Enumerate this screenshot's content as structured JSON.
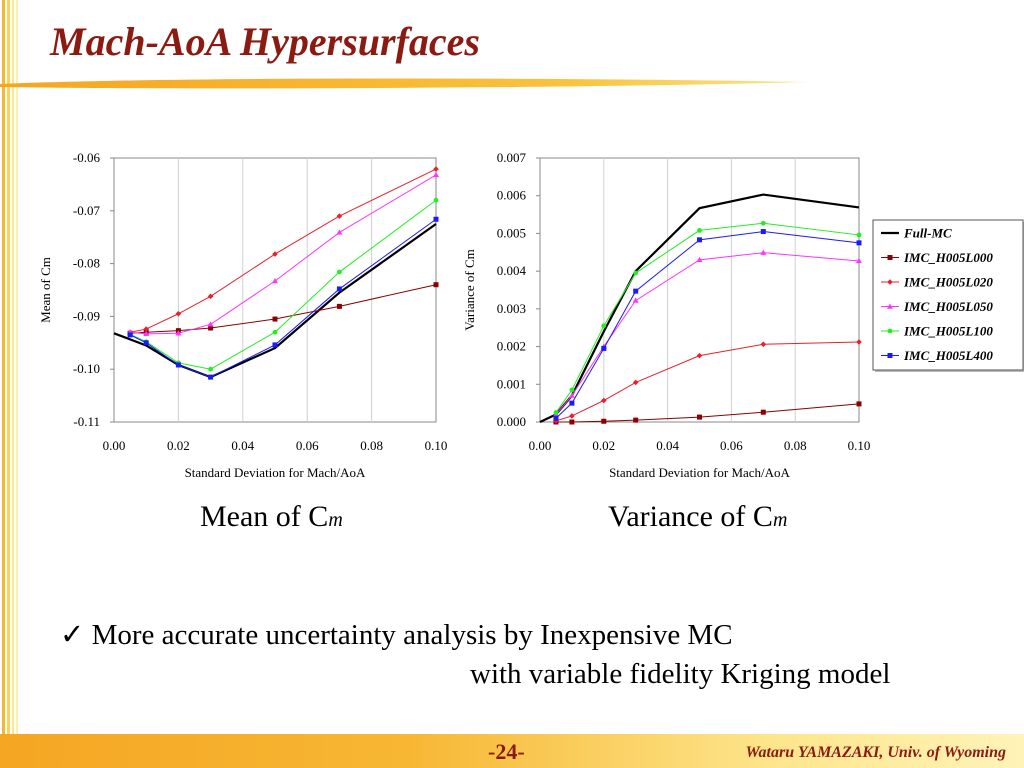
{
  "slide": {
    "title": "Mach-AoA Hypersurfaces",
    "caption_left": "Mean of C",
    "caption_left_sub": "m",
    "caption_right": "Variance of C",
    "caption_right_sub": "m",
    "bullet_mark": "✓",
    "bullet_line1": "More accurate uncertainty analysis by Inexpensive MC",
    "bullet_line2": "with variable fidelity Kriging model",
    "page_number": "-24-",
    "author": "Wataru YAMAZAKI, Univ. of Wyoming"
  },
  "colors": {
    "title": "#8b1a12",
    "Full-MC": "#000000",
    "IMC_H005L000": "#8b0000",
    "IMC_H005L020": "#e8202a",
    "IMC_H005L050": "#ff33ff",
    "IMC_H005L100": "#22ee22",
    "IMC_H005L400": "#1a1aff"
  },
  "chart_data": [
    {
      "type": "line",
      "xlabel": "Standard Deviation for Mach/AoA",
      "ylabel": "Mean of Cm",
      "xlim": [
        0,
        0.1
      ],
      "ylim": [
        -0.11,
        -0.06
      ],
      "xticks": [
        "0.00",
        "0.02",
        "0.04",
        "0.06",
        "0.08",
        "0.10"
      ],
      "yticks": [
        "-0.06",
        "-0.07",
        "-0.08",
        "-0.09",
        "-0.10",
        "-0.11"
      ],
      "grid": "vertical",
      "series": [
        {
          "name": "Full-MC",
          "x": [
            0,
            0.01,
            0.02,
            0.03,
            0.05,
            0.07,
            0.1
          ],
          "y": [
            -0.0932,
            -0.0955,
            -0.0992,
            -0.1015,
            -0.096,
            -0.0855,
            -0.0725
          ]
        },
        {
          "name": "IMC_H005L000",
          "x": [
            0.005,
            0.01,
            0.02,
            0.03,
            0.05,
            0.07,
            0.1
          ],
          "y": [
            -0.0932,
            -0.093,
            -0.0927,
            -0.0922,
            -0.0905,
            -0.0881,
            -0.084
          ]
        },
        {
          "name": "IMC_H005L020",
          "x": [
            0.005,
            0.01,
            0.02,
            0.03,
            0.05,
            0.07,
            0.1
          ],
          "y": [
            -0.093,
            -0.0924,
            -0.0895,
            -0.0862,
            -0.0782,
            -0.071,
            -0.0621
          ]
        },
        {
          "name": "IMC_H005L050",
          "x": [
            0.005,
            0.01,
            0.02,
            0.03,
            0.05,
            0.07,
            0.1
          ],
          "y": [
            -0.093,
            -0.0933,
            -0.0932,
            -0.0915,
            -0.0833,
            -0.0741,
            -0.0632
          ]
        },
        {
          "name": "IMC_H005L100",
          "x": [
            0.005,
            0.01,
            0.02,
            0.03,
            0.05,
            0.07,
            0.1
          ],
          "y": [
            -0.0934,
            -0.0948,
            -0.0988,
            -0.1,
            -0.093,
            -0.0816,
            -0.068
          ]
        },
        {
          "name": "IMC_H005L400",
          "x": [
            0.005,
            0.01,
            0.02,
            0.03,
            0.05,
            0.07,
            0.1
          ],
          "y": [
            -0.0935,
            -0.095,
            -0.0992,
            -0.1015,
            -0.0954,
            -0.0848,
            -0.0716
          ]
        }
      ]
    },
    {
      "type": "line",
      "xlabel": "Standard Deviation for Mach/AoA",
      "ylabel": "Variance of Cm",
      "xlim": [
        0,
        0.1
      ],
      "ylim": [
        0,
        0.007
      ],
      "xticks": [
        "0.00",
        "0.02",
        "0.04",
        "0.06",
        "0.08",
        "0.10"
      ],
      "yticks": [
        "0.007",
        "0.006",
        "0.005",
        "0.004",
        "0.003",
        "0.002",
        "0.001",
        "0.000"
      ],
      "grid": "vertical",
      "legend": "right",
      "series": [
        {
          "name": "Full-MC",
          "x": [
            0,
            0.005,
            0.01,
            0.02,
            0.03,
            0.05,
            0.07,
            0.1
          ],
          "y": [
            0,
            0.0002,
            0.0007,
            0.0024,
            0.004,
            0.00567,
            0.00603,
            0.00569
          ]
        },
        {
          "name": "IMC_H005L000",
          "x": [
            0.005,
            0.01,
            0.02,
            0.03,
            0.05,
            0.07,
            0.1
          ],
          "y": [
            0.0,
            0.0,
            2e-05,
            5e-05,
            0.00013,
            0.00026,
            0.00048
          ]
        },
        {
          "name": "IMC_H005L020",
          "x": [
            0.005,
            0.01,
            0.02,
            0.03,
            0.05,
            0.07,
            0.1
          ],
          "y": [
            3e-05,
            0.00016,
            0.00057,
            0.00105,
            0.00176,
            0.00206,
            0.00212
          ]
        },
        {
          "name": "IMC_H005L050",
          "x": [
            0.005,
            0.01,
            0.02,
            0.03,
            0.05,
            0.07,
            0.1
          ],
          "y": [
            0.0002,
            0.0007,
            0.002,
            0.00322,
            0.0043,
            0.00449,
            0.00427
          ]
        },
        {
          "name": "IMC_H005L100",
          "x": [
            0.005,
            0.01,
            0.02,
            0.03,
            0.05,
            0.07,
            0.1
          ],
          "y": [
            0.00025,
            0.00085,
            0.00255,
            0.00395,
            0.00508,
            0.00527,
            0.00496
          ]
        },
        {
          "name": "IMC_H005L400",
          "x": [
            0.005,
            0.01,
            0.02,
            0.03,
            0.05,
            0.07,
            0.1
          ],
          "y": [
            0.0001,
            0.0005,
            0.00195,
            0.00347,
            0.00483,
            0.00505,
            0.00475
          ]
        }
      ]
    }
  ]
}
